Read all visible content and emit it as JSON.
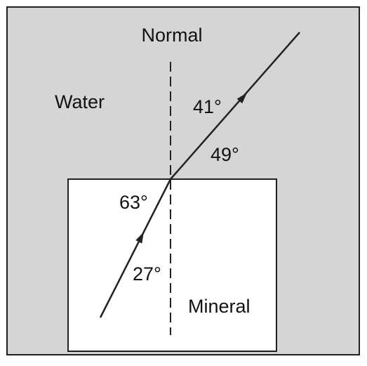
{
  "labels": {
    "normal": "Normal",
    "water": "Water",
    "angle_refracted_normal": "41°",
    "angle_refracted_surface": "49°",
    "angle_incident_surface": "63°",
    "angle_incident_normal": "27°",
    "mineral": "Mineral"
  }
}
